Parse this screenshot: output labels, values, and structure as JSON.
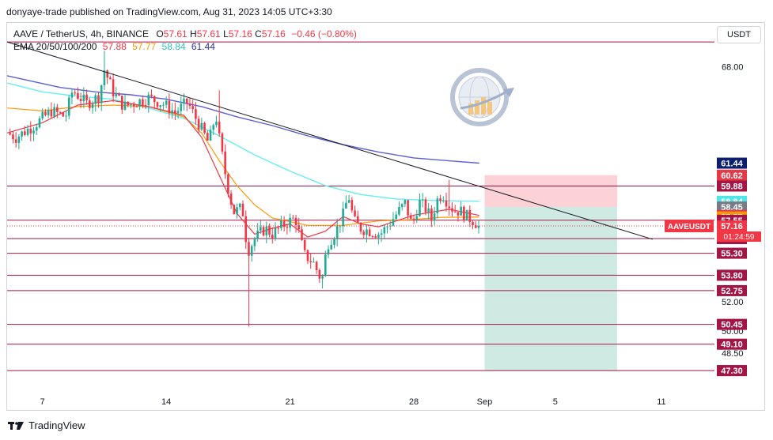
{
  "header": {
    "published_by": "donyaye-trade published on TradingView.com, Aug 31, 2023 14:05 UTC+3:30"
  },
  "legend": {
    "symbol": "AAVE / TetherUS, 4h, BINANCE",
    "o_label": "O",
    "o": "57.61",
    "h_label": "H",
    "h": "57.61",
    "l_label": "L",
    "l": "57.16",
    "c_label": "C",
    "c": "57.16",
    "change": "−0.46 (−0.80%)",
    "ema_label": "EMA 20/50/100/200",
    "ema20": "57.88",
    "ema50": "57.77",
    "ema100": "58.84",
    "ema200": "61.44"
  },
  "currency_button": "USDT",
  "footer": {
    "brand": "TradingView"
  },
  "colors": {
    "up": "#22ab94",
    "down": "#f23645",
    "ema20": "#f23645",
    "ema50": "#ff9800",
    "ema100": "#63f0f0",
    "ema200": "#5b5fd6",
    "hline": "#a31545",
    "trendline": "#131722",
    "stop_zone": "#fcd2d6",
    "target_zone": "#cfe9e3"
  },
  "chart_data": {
    "type": "candlestick",
    "symbol": "AAVEUSDT",
    "interval": "4h",
    "y_range": [
      45.8,
      71.0
    ],
    "y_ticks": [
      {
        "value": 68.0,
        "label": "68.00"
      },
      {
        "value": 52.0,
        "label": "52.00"
      },
      {
        "value": 50.0,
        "label": "50.00"
      },
      {
        "value": 48.5,
        "label": "48.50"
      }
    ],
    "x_ticks": [
      {
        "day": 7,
        "label": "7"
      },
      {
        "day": 14,
        "label": "14"
      },
      {
        "day": 21,
        "label": "21"
      },
      {
        "day": 28,
        "label": "28"
      },
      {
        "day": 32,
        "label": "Sep"
      },
      {
        "day": 36,
        "label": "5"
      },
      {
        "day": 42,
        "label": "11"
      }
    ],
    "x_range_day": [
      5.0,
      45.0
    ],
    "price_labels": [
      {
        "value": 61.44,
        "label": "61.44",
        "color": "#0c1f6e"
      },
      {
        "value": 60.62,
        "label": "60.62",
        "color": "#e53947"
      },
      {
        "value": 59.88,
        "label": "59.88",
        "color": "#a31545"
      },
      {
        "value": 58.84,
        "label": "58.84",
        "color": "#4ee6e6"
      },
      {
        "value": 58.45,
        "label": "58.45",
        "color": "#787b86"
      },
      {
        "value": 57.88,
        "label": "57.88",
        "color": "#e53947"
      },
      {
        "value": 57.77,
        "label": "57.77",
        "color": "#ff9800"
      },
      {
        "value": 57.55,
        "label": "57.55",
        "color": "#a31545"
      },
      {
        "value": 57.16,
        "label": "57.16",
        "color": "#f23645"
      },
      {
        "value": 56.3,
        "label": "56.30",
        "color": "#a31545"
      },
      {
        "value": 55.3,
        "label": "55.30",
        "color": "#a31545"
      },
      {
        "value": 53.8,
        "label": "53.80",
        "color": "#a31545"
      },
      {
        "value": 52.75,
        "label": "52.75",
        "color": "#a31545"
      },
      {
        "value": 50.45,
        "label": "50.45",
        "color": "#a31545"
      },
      {
        "value": 49.1,
        "label": "49.10",
        "color": "#a31545"
      },
      {
        "value": 47.31,
        "label": "47.31",
        "color": "#22ab94"
      },
      {
        "value": 47.3,
        "label": "47.30",
        "color": "#a31545"
      }
    ],
    "current_price": {
      "symbol_label": "AAVEUSDT",
      "value": "57.16",
      "countdown": "01:24:59"
    },
    "horizontal_levels": [
      69.7,
      59.88,
      57.55,
      56.3,
      55.3,
      53.8,
      52.75,
      50.45,
      49.1,
      47.3
    ],
    "trendline": [
      {
        "day": 5.0,
        "price": 69.7
      },
      {
        "day": 41.5,
        "price": 56.25
      }
    ],
    "position": {
      "type": "short",
      "entry": 58.45,
      "stop": 60.62,
      "target": 47.31,
      "day_start": 32.0,
      "day_end": 39.5
    },
    "ema200": [
      [
        5.0,
        67.4
      ],
      [
        8,
        66.6
      ],
      [
        10,
        66.3
      ],
      [
        12,
        66.1
      ],
      [
        14,
        65.8
      ],
      [
        16,
        65.3
      ],
      [
        18,
        64.6
      ],
      [
        20,
        64.0
      ],
      [
        22,
        63.3
      ],
      [
        24,
        62.7
      ],
      [
        26,
        62.2
      ],
      [
        28,
        61.8
      ],
      [
        30,
        61.6
      ],
      [
        31.7,
        61.44
      ]
    ],
    "ema100": [
      [
        5.0,
        66.9
      ],
      [
        7,
        66.3
      ],
      [
        9,
        66.0
      ],
      [
        11,
        65.8
      ],
      [
        13,
        65.2
      ],
      [
        15,
        64.5
      ],
      [
        17,
        63.3
      ],
      [
        19,
        62.0
      ],
      [
        21,
        60.9
      ],
      [
        23,
        59.9
      ],
      [
        25,
        59.3
      ],
      [
        27,
        59.0
      ],
      [
        29,
        58.9
      ],
      [
        31.7,
        58.84
      ]
    ],
    "ema50": [
      [
        5.0,
        65.2
      ],
      [
        7,
        65.0
      ],
      [
        9,
        65.3
      ],
      [
        11,
        65.4
      ],
      [
        13,
        65.3
      ],
      [
        15,
        64.6
      ],
      [
        16,
        63.5
      ],
      [
        17,
        61.6
      ],
      [
        18,
        59.9
      ],
      [
        19,
        58.6
      ],
      [
        20,
        57.7
      ],
      [
        22,
        57.2
      ],
      [
        24,
        57.2
      ],
      [
        26,
        57.5
      ],
      [
        28,
        57.6
      ],
      [
        29.5,
        57.75
      ],
      [
        31.7,
        57.77
      ]
    ],
    "ema20": [
      [
        5.0,
        63.5
      ],
      [
        7,
        64.2
      ],
      [
        9,
        65.4
      ],
      [
        11,
        65.7
      ],
      [
        13,
        65.3
      ],
      [
        15,
        64.7
      ],
      [
        16,
        63.2
      ],
      [
        17,
        60.6
      ],
      [
        18,
        58.0
      ],
      [
        19,
        56.6
      ],
      [
        20,
        57.0
      ],
      [
        21,
        57.3
      ],
      [
        22,
        56.4
      ],
      [
        23,
        56.8
      ],
      [
        24,
        57.8
      ],
      [
        25,
        57.3
      ],
      [
        26,
        57.1
      ],
      [
        27,
        57.5
      ],
      [
        28,
        57.9
      ],
      [
        29,
        58.1
      ],
      [
        30,
        58.3
      ],
      [
        31.7,
        57.88
      ]
    ],
    "candle_anchors": [
      [
        5.0,
        63.5
      ],
      [
        5.5,
        63.2
      ],
      [
        6.5,
        64.0
      ],
      [
        7.5,
        65.0
      ],
      [
        8.3,
        64.6
      ],
      [
        8.7,
        66.4
      ],
      [
        9.5,
        65.5
      ],
      [
        10.2,
        66.0
      ],
      [
        10.5,
        67.8
      ],
      [
        11.0,
        66.3
      ],
      [
        11.6,
        65.3
      ],
      [
        12.3,
        65.6
      ],
      [
        13.0,
        65.9
      ],
      [
        13.8,
        65.5
      ],
      [
        14.5,
        64.9
      ],
      [
        15.2,
        65.6
      ],
      [
        15.8,
        64.2
      ],
      [
        16.4,
        62.8
      ],
      [
        16.8,
        64.8
      ],
      [
        17.0,
        63.1
      ],
      [
        17.4,
        60.3
      ],
      [
        17.8,
        58.1
      ],
      [
        18.3,
        58.4
      ],
      [
        18.6,
        55.4
      ],
      [
        19.0,
        56.3
      ],
      [
        19.6,
        57.0
      ],
      [
        20.0,
        56.6
      ],
      [
        20.6,
        57.2
      ],
      [
        21.0,
        57.5
      ],
      [
        21.3,
        57.7
      ],
      [
        21.8,
        55.2
      ],
      [
        22.3,
        54.7
      ],
      [
        22.8,
        53.4
      ],
      [
        23.1,
        55.9
      ],
      [
        23.6,
        56.8
      ],
      [
        24.0,
        57.9
      ],
      [
        24.3,
        59.3
      ],
      [
        24.6,
        57.5
      ],
      [
        25.0,
        57.0
      ],
      [
        25.6,
        56.8
      ],
      [
        26.1,
        56.6
      ],
      [
        26.6,
        57.3
      ],
      [
        27.1,
        58.1
      ],
      [
        27.5,
        58.7
      ],
      [
        27.9,
        57.2
      ],
      [
        28.3,
        58.8
      ],
      [
        28.7,
        58.3
      ],
      [
        29.0,
        57.6
      ],
      [
        29.3,
        58.9
      ],
      [
        29.6,
        59.4
      ],
      [
        30.0,
        58.6
      ],
      [
        30.3,
        58.2
      ],
      [
        30.6,
        58.2
      ],
      [
        31.0,
        57.8
      ],
      [
        31.4,
        57.5
      ],
      [
        31.7,
        57.16
      ]
    ]
  }
}
